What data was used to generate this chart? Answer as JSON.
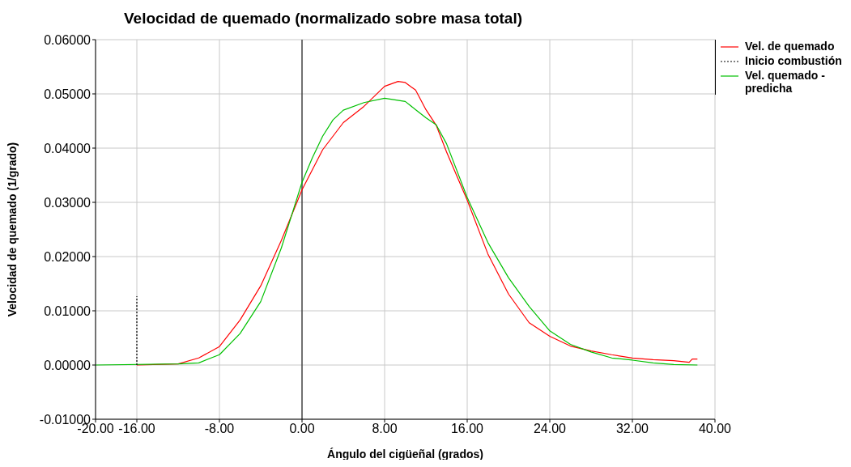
{
  "chart_data": {
    "type": "line",
    "title": "Velocidad de quemado (normalizado sobre masa total)",
    "xlabel": "Ángulo del cigüeñal (grados)",
    "ylabel": "Velocidad de quemado (1/grado)",
    "xlim": [
      -20,
      40
    ],
    "xticks": [
      {
        "value": -20,
        "label": "-20.00"
      },
      {
        "value": -16,
        "label": "-16.00"
      },
      {
        "value": -8,
        "label": "-8.00"
      },
      {
        "value": 0,
        "label": "0.00"
      },
      {
        "value": 8,
        "label": "8.00"
      },
      {
        "value": 16,
        "label": "16.00"
      },
      {
        "value": 24,
        "label": "24.00"
      },
      {
        "value": 32,
        "label": "32.00"
      },
      {
        "value": 40,
        "label": "40.00"
      }
    ],
    "ylim": [
      -0.01,
      0.06
    ],
    "yticks": [
      {
        "value": -0.01,
        "label": "-0.01000"
      },
      {
        "value": 0,
        "label": "0.00000"
      },
      {
        "value": 0.01,
        "label": "0.01000"
      },
      {
        "value": 0.02,
        "label": "0.02000"
      },
      {
        "value": 0.03,
        "label": "0.03000"
      },
      {
        "value": 0.04,
        "label": "0.04000"
      },
      {
        "value": 0.05,
        "label": "0.05000"
      },
      {
        "value": 0.06,
        "label": "0.06000"
      }
    ],
    "grid": true,
    "legend": "top right",
    "marker": "none",
    "ref_lines": [
      {
        "axis": "x",
        "value": 0,
        "color": "#000000",
        "line_style": "solid"
      }
    ],
    "series": [
      {
        "name": "Vel. de quemado",
        "color": "#ff0000",
        "line_style": "solid",
        "x": [
          -16,
          -12,
          -10,
          -8,
          -6,
          -4,
          -2,
          0,
          2,
          4,
          6,
          8,
          9.3,
          10,
          11,
          12,
          13,
          14,
          16,
          18,
          20,
          22,
          24,
          26,
          28,
          30,
          32,
          34,
          36,
          37.5,
          37.8,
          38.3
        ],
        "values": [
          0,
          0.0002,
          0.0013,
          0.0034,
          0.0083,
          0.0146,
          0.023,
          0.0323,
          0.0397,
          0.0447,
          0.0477,
          0.0514,
          0.0523,
          0.0521,
          0.0507,
          0.0471,
          0.0442,
          0.0393,
          0.0304,
          0.0205,
          0.0131,
          0.0078,
          0.0053,
          0.0035,
          0.0026,
          0.0019,
          0.0013,
          0.001,
          0.0008,
          0.0005,
          0.0011,
          0.0011
        ]
      },
      {
        "name": "Inicio combustión",
        "color": "#000000",
        "line_style": "dotted",
        "x": [
          -16,
          -16
        ],
        "values": [
          0,
          0.0127
        ]
      },
      {
        "name": "Vel. quemado - predicha",
        "color": "#00c000",
        "line_style": "solid",
        "x": [
          -20,
          -12,
          -10,
          -8,
          -6,
          -4,
          -2,
          0,
          1,
          2,
          3,
          4,
          6,
          8,
          10,
          11,
          12,
          13,
          14,
          16,
          18,
          20,
          22,
          24,
          26,
          28,
          30,
          32,
          34,
          36,
          38.3
        ],
        "values": [
          0,
          0.0002,
          0.0004,
          0.0019,
          0.0058,
          0.0117,
          0.0216,
          0.0337,
          0.0382,
          0.0422,
          0.0452,
          0.047,
          0.0484,
          0.0492,
          0.0486,
          0.0471,
          0.0456,
          0.0443,
          0.0408,
          0.0309,
          0.0226,
          0.0161,
          0.0108,
          0.0063,
          0.0038,
          0.0024,
          0.0013,
          0.0009,
          0.0004,
          0.0001,
          0
        ]
      }
    ]
  }
}
